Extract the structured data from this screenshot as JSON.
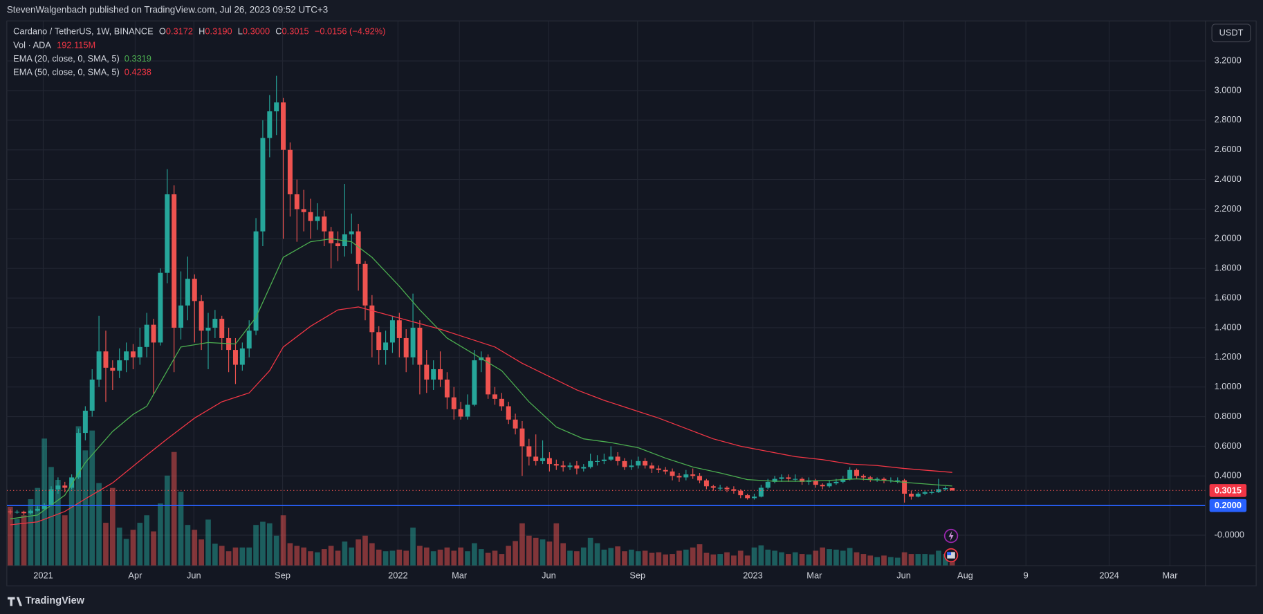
{
  "chart_data": {
    "type": "candlestick",
    "published": "StevenWalgenbach published on TradingView.com, Jul 26, 2023 09:52 UTC+3",
    "title": "Cardano / TetherUS, 1W, BINANCE",
    "ohlc_letters": [
      "O",
      "H",
      "L",
      "C"
    ],
    "legend_labels": {
      "high": "0.3190",
      "low": "0.3000"
    },
    "change_label": "−0.0156 (−4.92%)",
    "volume_name": "Vol · ADA",
    "volume_label": "192.115M",
    "currency": "USDT",
    "brand": "TradingView",
    "up_color": "#26a69a",
    "down_color": "#ef5350",
    "open": [
      0.16,
      0.156,
      0.158,
      0.148,
      0.165,
      0.178,
      0.205,
      0.31,
      0.335,
      0.32,
      0.39,
      0.69,
      0.84,
      1.05,
      1.24,
      1.13,
      1.11,
      1.18,
      1.24,
      1.2,
      1.27,
      1.42,
      1.3,
      1.77,
      2.3,
      1.4,
      1.55,
      1.73,
      1.58,
      1.38,
      1.4,
      1.46,
      1.33,
      1.25,
      1.15,
      1.26,
      1.38,
      2.05,
      2.68,
      2.86,
      2.92,
      2.6,
      2.3,
      2.2,
      2.18,
      2.12,
      2.15,
      2.05,
      1.97,
      1.95,
      2.03,
      2.05,
      1.83,
      1.55,
      1.37,
      1.25,
      1.3,
      1.45,
      1.33,
      1.2,
      1.4,
      1.15,
      1.05,
      1.12,
      1.05,
      0.93,
      0.85,
      0.8,
      0.88,
      1.18,
      1.2,
      0.95,
      0.92,
      0.87,
      0.78,
      0.72,
      0.6,
      0.53,
      0.5,
      0.52,
      0.48,
      0.47,
      0.46,
      0.47,
      0.45,
      0.46,
      0.5,
      0.5,
      0.51,
      0.53,
      0.5,
      0.46,
      0.47,
      0.5,
      0.47,
      0.45,
      0.44,
      0.43,
      0.4,
      0.39,
      0.41,
      0.4,
      0.37,
      0.33,
      0.32,
      0.32,
      0.31,
      0.3,
      0.27,
      0.25,
      0.26,
      0.32,
      0.36,
      0.38,
      0.39,
      0.38,
      0.38,
      0.36,
      0.37,
      0.34,
      0.33,
      0.35,
      0.36,
      0.38,
      0.44,
      0.4,
      0.39,
      0.38,
      0.38,
      0.37,
      0.37,
      0.37,
      0.28,
      0.26,
      0.28,
      0.29,
      0.29,
      0.31,
      0.3172
    ],
    "high": [
      0.175,
      0.17,
      0.165,
      0.175,
      0.195,
      0.215,
      0.33,
      0.39,
      0.36,
      0.41,
      0.72,
      0.87,
      1.12,
      1.48,
      1.38,
      1.18,
      1.26,
      1.3,
      1.29,
      1.4,
      1.5,
      1.46,
      1.8,
      2.47,
      2.36,
      1.78,
      1.88,
      1.76,
      1.62,
      1.5,
      1.52,
      1.48,
      1.4,
      1.33,
      1.3,
      1.45,
      2.14,
      2.8,
      2.97,
      3.1,
      2.95,
      2.65,
      2.4,
      2.33,
      2.27,
      2.24,
      2.19,
      2.08,
      2.05,
      2.37,
      2.17,
      2.1,
      1.85,
      1.62,
      1.41,
      1.38,
      1.48,
      1.5,
      1.39,
      1.63,
      1.45,
      1.25,
      1.18,
      1.24,
      1.1,
      1.0,
      0.9,
      0.95,
      1.25,
      1.24,
      1.22,
      1.0,
      0.96,
      0.9,
      0.82,
      0.77,
      0.65,
      0.68,
      0.64,
      0.56,
      0.51,
      0.5,
      0.49,
      0.5,
      0.48,
      0.55,
      0.54,
      0.55,
      0.6,
      0.56,
      0.52,
      0.51,
      0.53,
      0.52,
      0.49,
      0.47,
      0.46,
      0.45,
      0.42,
      0.44,
      0.45,
      0.42,
      0.38,
      0.34,
      0.34,
      0.33,
      0.33,
      0.31,
      0.28,
      0.28,
      0.34,
      0.38,
      0.4,
      0.41,
      0.41,
      0.41,
      0.39,
      0.39,
      0.38,
      0.35,
      0.37,
      0.38,
      0.4,
      0.46,
      0.45,
      0.41,
      0.4,
      0.39,
      0.39,
      0.39,
      0.39,
      0.38,
      0.3,
      0.29,
      0.3,
      0.31,
      0.38,
      0.33,
      0.319
    ],
    "low": [
      0.14,
      0.145,
      0.135,
      0.14,
      0.16,
      0.17,
      0.195,
      0.28,
      0.29,
      0.31,
      0.38,
      0.64,
      0.8,
      1.0,
      0.9,
      0.98,
      1.06,
      1.1,
      1.12,
      1.15,
      1.2,
      0.95,
      1.28,
      1.7,
      1.1,
      1.32,
      1.45,
      1.3,
      1.25,
      1.12,
      1.33,
      1.25,
      1.1,
      1.02,
      1.11,
      1.2,
      1.35,
      1.95,
      2.55,
      2.7,
      2.0,
      2.15,
      1.98,
      2.05,
      2.0,
      2.06,
      1.95,
      1.8,
      1.85,
      1.88,
      1.9,
      1.65,
      1.45,
      1.2,
      1.15,
      1.15,
      1.23,
      1.2,
      1.1,
      1.15,
      0.95,
      0.96,
      0.98,
      1.0,
      0.85,
      0.78,
      0.78,
      0.78,
      0.87,
      1.1,
      0.92,
      0.88,
      0.84,
      0.75,
      0.68,
      0.4,
      0.47,
      0.47,
      0.48,
      0.43,
      0.44,
      0.43,
      0.44,
      0.41,
      0.43,
      0.45,
      0.47,
      0.48,
      0.5,
      0.47,
      0.44,
      0.44,
      0.45,
      0.45,
      0.42,
      0.42,
      0.41,
      0.37,
      0.36,
      0.37,
      0.38,
      0.35,
      0.31,
      0.3,
      0.3,
      0.29,
      0.28,
      0.25,
      0.24,
      0.24,
      0.255,
      0.31,
      0.35,
      0.36,
      0.36,
      0.36,
      0.34,
      0.34,
      0.32,
      0.31,
      0.32,
      0.34,
      0.35,
      0.37,
      0.38,
      0.37,
      0.36,
      0.36,
      0.35,
      0.355,
      0.35,
      0.22,
      0.24,
      0.255,
      0.27,
      0.275,
      0.285,
      0.3,
      0.3
    ],
    "close": [
      0.156,
      0.158,
      0.148,
      0.165,
      0.178,
      0.205,
      0.31,
      0.335,
      0.32,
      0.39,
      0.69,
      0.84,
      1.05,
      1.24,
      1.13,
      1.11,
      1.18,
      1.24,
      1.2,
      1.27,
      1.42,
      1.3,
      1.77,
      2.3,
      1.4,
      1.55,
      1.73,
      1.58,
      1.38,
      1.4,
      1.46,
      1.33,
      1.25,
      1.15,
      1.26,
      1.38,
      2.05,
      2.68,
      2.86,
      2.92,
      2.6,
      2.3,
      2.2,
      2.18,
      2.12,
      2.15,
      2.05,
      1.97,
      1.95,
      2.03,
      2.05,
      1.83,
      1.55,
      1.37,
      1.25,
      1.3,
      1.45,
      1.33,
      1.2,
      1.4,
      1.15,
      1.05,
      1.12,
      1.05,
      0.93,
      0.85,
      0.8,
      0.88,
      1.18,
      1.2,
      0.95,
      0.92,
      0.87,
      0.78,
      0.72,
      0.6,
      0.53,
      0.5,
      0.52,
      0.48,
      0.47,
      0.46,
      0.47,
      0.45,
      0.46,
      0.5,
      0.5,
      0.51,
      0.53,
      0.5,
      0.46,
      0.47,
      0.5,
      0.47,
      0.45,
      0.44,
      0.43,
      0.4,
      0.39,
      0.41,
      0.4,
      0.37,
      0.33,
      0.32,
      0.32,
      0.31,
      0.3,
      0.27,
      0.25,
      0.26,
      0.32,
      0.36,
      0.38,
      0.39,
      0.38,
      0.38,
      0.36,
      0.37,
      0.34,
      0.33,
      0.35,
      0.36,
      0.38,
      0.44,
      0.4,
      0.39,
      0.38,
      0.38,
      0.37,
      0.37,
      0.37,
      0.28,
      0.26,
      0.28,
      0.29,
      0.29,
      0.31,
      0.3172,
      0.3015
    ],
    "volume": [
      1100,
      870,
      940,
      1240,
      1450,
      2370,
      1840,
      1600,
      940,
      1540,
      2600,
      2150,
      2520,
      1540,
      800,
      1450,
      710,
      500,
      670,
      800,
      940,
      640,
      1160,
      1680,
      2120,
      1380,
      760,
      670,
      490,
      860,
      410,
      370,
      270,
      340,
      340,
      340,
      760,
      820,
      790,
      560,
      940,
      420,
      370,
      340,
      270,
      250,
      310,
      370,
      280,
      450,
      340,
      490,
      560,
      420,
      300,
      270,
      280,
      300,
      280,
      710,
      370,
      340,
      270,
      300,
      340,
      280,
      340,
      270,
      420,
      310,
      240,
      280,
      220,
      370,
      460,
      790,
      560,
      520,
      490,
      450,
      790,
      420,
      280,
      270,
      340,
      520,
      420,
      300,
      330,
      360,
      270,
      300,
      270,
      280,
      240,
      250,
      210,
      220,
      280,
      300,
      340,
      400,
      240,
      210,
      220,
      250,
      190,
      280,
      190,
      340,
      380,
      300,
      280,
      250,
      220,
      250,
      220,
      210,
      280,
      340,
      310,
      300,
      280,
      330,
      250,
      220,
      190,
      160,
      190,
      160,
      150,
      250,
      220,
      220,
      220,
      210,
      280,
      220,
      192.115
    ],
    "volume_lim": [
      0,
      4500
    ],
    "ema": [
      {
        "name": "EMA (20, close, 0, SMA, 5)",
        "color": "#4caf50",
        "x": [
          0,
          4,
          8,
          11,
          15,
          18,
          20,
          23,
          25,
          29,
          33,
          36,
          40,
          44,
          47,
          50,
          53,
          57,
          60,
          64,
          68,
          72,
          76,
          80,
          84,
          88,
          92,
          96,
          100,
          104,
          108,
          112,
          116,
          120,
          124,
          128,
          132,
          138
        ],
        "values": [
          0.11,
          0.136,
          0.27,
          0.49,
          0.7,
          0.815,
          0.87,
          1.11,
          1.27,
          1.3,
          1.29,
          1.47,
          1.875,
          1.98,
          2.0,
          1.98,
          1.875,
          1.68,
          1.52,
          1.33,
          1.22,
          1.11,
          0.9,
          0.73,
          0.65,
          0.625,
          0.59,
          0.52,
          0.46,
          0.42,
          0.375,
          0.364,
          0.364,
          0.37,
          0.38,
          0.37,
          0.353,
          0.3319
        ]
      },
      {
        "name": "EMA (50, close, 0, SMA, 5)",
        "color": "#f23645",
        "x": [
          0,
          4,
          8,
          11,
          15,
          20,
          23,
          27,
          31,
          35,
          38,
          40,
          44,
          48,
          51,
          55,
          59,
          63,
          67,
          71,
          75,
          79,
          83,
          87,
          91,
          95,
          99,
          103,
          107,
          111,
          115,
          119,
          123,
          127,
          131,
          138
        ],
        "values": [
          0.07,
          0.09,
          0.16,
          0.245,
          0.353,
          0.54,
          0.65,
          0.79,
          0.9,
          0.96,
          1.11,
          1.27,
          1.41,
          1.52,
          1.54,
          1.49,
          1.44,
          1.39,
          1.33,
          1.27,
          1.16,
          1.07,
          0.98,
          0.91,
          0.85,
          0.79,
          0.72,
          0.65,
          0.6,
          0.565,
          0.53,
          0.51,
          0.48,
          0.47,
          0.45,
          0.4238
        ]
      }
    ],
    "hlines": [
      {
        "value": 0.2,
        "label": "0.2000",
        "color": "#2962ff"
      }
    ],
    "xlim": [
      -0.5,
      175.1
    ],
    "xticks": [
      {
        "value": 4.83,
        "label": "2021"
      },
      {
        "value": 18.3,
        "label": "Apr"
      },
      {
        "value": 26.9,
        "label": "Jun"
      },
      {
        "value": 39.9,
        "label": "Sep"
      },
      {
        "value": 56.8,
        "label": "2022"
      },
      {
        "value": 65.8,
        "label": "Mar"
      },
      {
        "value": 78.9,
        "label": "Jun"
      },
      {
        "value": 91.9,
        "label": "Sep"
      },
      {
        "value": 108.8,
        "label": "2023"
      },
      {
        "value": 117.8,
        "label": "Mar"
      },
      {
        "value": 130.9,
        "label": "Jun"
      },
      {
        "value": 139.9,
        "label": "Aug"
      },
      {
        "value": 148.8,
        "label": "9"
      },
      {
        "value": 161,
        "label": "2024"
      },
      {
        "value": 169.9,
        "label": "Mar"
      }
    ],
    "ylim": [
      -0.206,
      3.47
    ],
    "yticks": [
      {
        "value": 0,
        "label": "-0.0000"
      },
      {
        "value": 0.4,
        "label": "0.4000"
      },
      {
        "value": 0.6,
        "label": "0.6000"
      },
      {
        "value": 0.8,
        "label": "0.8000"
      },
      {
        "value": 1.0,
        "label": "1.0000"
      },
      {
        "value": 1.2,
        "label": "1.2000"
      },
      {
        "value": 1.4,
        "label": "1.4000"
      },
      {
        "value": 1.6,
        "label": "1.6000"
      },
      {
        "value": 1.8,
        "label": "1.8000"
      },
      {
        "value": 2.0,
        "label": "2.0000"
      },
      {
        "value": 2.2,
        "label": "2.2000"
      },
      {
        "value": 2.4,
        "label": "2.4000"
      },
      {
        "value": 2.6,
        "label": "2.6000"
      },
      {
        "value": 2.8,
        "label": "2.8000"
      },
      {
        "value": 3.0,
        "label": "3.0000"
      },
      {
        "value": 3.2,
        "label": "3.2000"
      }
    ],
    "grid": true
  }
}
